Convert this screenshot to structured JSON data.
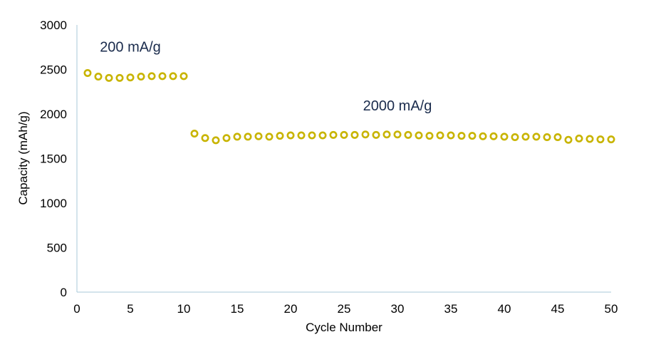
{
  "chart_data": {
    "type": "scatter",
    "title": "",
    "xlabel": "Cycle Number",
    "ylabel": "Capacity (mAh/g)",
    "xlim": [
      0,
      50
    ],
    "ylim": [
      0,
      3000
    ],
    "xticks": [
      0,
      5,
      10,
      15,
      20,
      25,
      30,
      35,
      40,
      45,
      50
    ],
    "yticks": [
      0,
      500,
      1000,
      1500,
      2000,
      2500,
      3000
    ],
    "grid": false,
    "legend": "none",
    "marker_color": "#c8b400",
    "axis_color": "#a9c8d8",
    "annotations": [
      {
        "text": "200 mA/g",
        "x": 5.0,
        "y": 2700
      },
      {
        "text": "2000 mA/g",
        "x": 30.0,
        "y": 2040
      }
    ],
    "series": [
      {
        "x": [
          1,
          2,
          3,
          4,
          5,
          6,
          7,
          8,
          9,
          10,
          11,
          12,
          13,
          14,
          15,
          16,
          17,
          18,
          19,
          20,
          21,
          22,
          23,
          24,
          25,
          26,
          27,
          28,
          29,
          30,
          31,
          32,
          33,
          34,
          35,
          36,
          37,
          38,
          39,
          40,
          41,
          42,
          43,
          44,
          45,
          46,
          47,
          48,
          49,
          50
        ],
        "y": [
          2460,
          2420,
          2405,
          2405,
          2410,
          2420,
          2425,
          2425,
          2425,
          2425,
          1780,
          1730,
          1705,
          1730,
          1745,
          1745,
          1750,
          1745,
          1755,
          1760,
          1760,
          1760,
          1760,
          1765,
          1765,
          1765,
          1770,
          1765,
          1770,
          1770,
          1765,
          1760,
          1755,
          1760,
          1760,
          1755,
          1755,
          1750,
          1750,
          1745,
          1740,
          1745,
          1745,
          1740,
          1740,
          1710,
          1725,
          1720,
          1715,
          1715
        ]
      }
    ]
  }
}
